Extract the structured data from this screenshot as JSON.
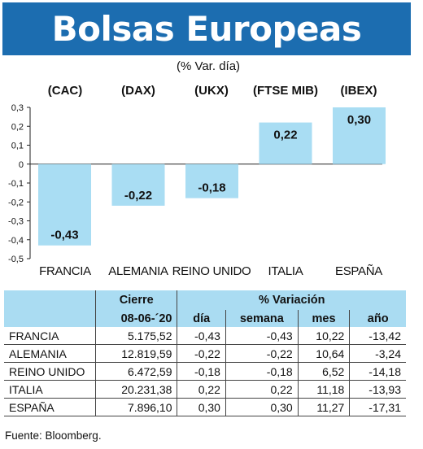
{
  "header": {
    "title": "Bolsas Europeas",
    "subtitle": "(% Var. día)"
  },
  "chart_data": {
    "type": "bar",
    "categories": [
      "FRANCIA",
      "ALEMANIA",
      "REINO UNIDO",
      "ITALIA",
      "ESPAÑA"
    ],
    "indices": [
      "(CAC)",
      "(DAX)",
      "(UKX)",
      "(FTSE MIB)",
      "(IBEX)"
    ],
    "values": [
      -0.43,
      -0.22,
      -0.18,
      0.22,
      0.3
    ],
    "value_labels": [
      "-0,43",
      "-0,22",
      "-0,18",
      "0,22",
      "0,30"
    ],
    "ylim": [
      -0.5,
      0.3
    ],
    "yticks": [
      0.3,
      0.2,
      0.1,
      0,
      -0.1,
      -0.2,
      -0.3,
      -0.4,
      -0.5
    ],
    "ytick_labels": [
      "0,3",
      "0,2",
      "0,1",
      "0",
      "-0,1",
      "-0,2",
      "-0,3",
      "-0,4",
      "-0,5"
    ],
    "bar_color": "#a9ddf3",
    "grid": false
  },
  "table": {
    "head1": {
      "cierre": "Cierre",
      "variacion": "% Variación"
    },
    "head2": {
      "date": "08-06-´20",
      "dia": "día",
      "semana": "semana",
      "mes": "mes",
      "ano": "año"
    },
    "rows": [
      {
        "name": "FRANCIA",
        "cierre": "5.175,52",
        "dia": "-0,43",
        "semana": "-0,43",
        "mes": "10,22",
        "ano": "-13,42"
      },
      {
        "name": "ALEMANIA",
        "cierre": "12.819,59",
        "dia": "-0,22",
        "semana": "-0,22",
        "mes": "10,64",
        "ano": "-3,24"
      },
      {
        "name": "REINO UNIDO",
        "cierre": "6.472,59",
        "dia": "-0,18",
        "semana": "-0,18",
        "mes": "6,52",
        "ano": "-14,18"
      },
      {
        "name": "ITALIA",
        "cierre": "20.231,38",
        "dia": "0,22",
        "semana": "0,22",
        "mes": "11,18",
        "ano": "-13,93"
      },
      {
        "name": "ESPAÑA",
        "cierre": "7.896,10",
        "dia": "0,30",
        "semana": "0,30",
        "mes": "11,27",
        "ano": "-17,31"
      }
    ]
  },
  "source": "Fuente: Bloomberg."
}
